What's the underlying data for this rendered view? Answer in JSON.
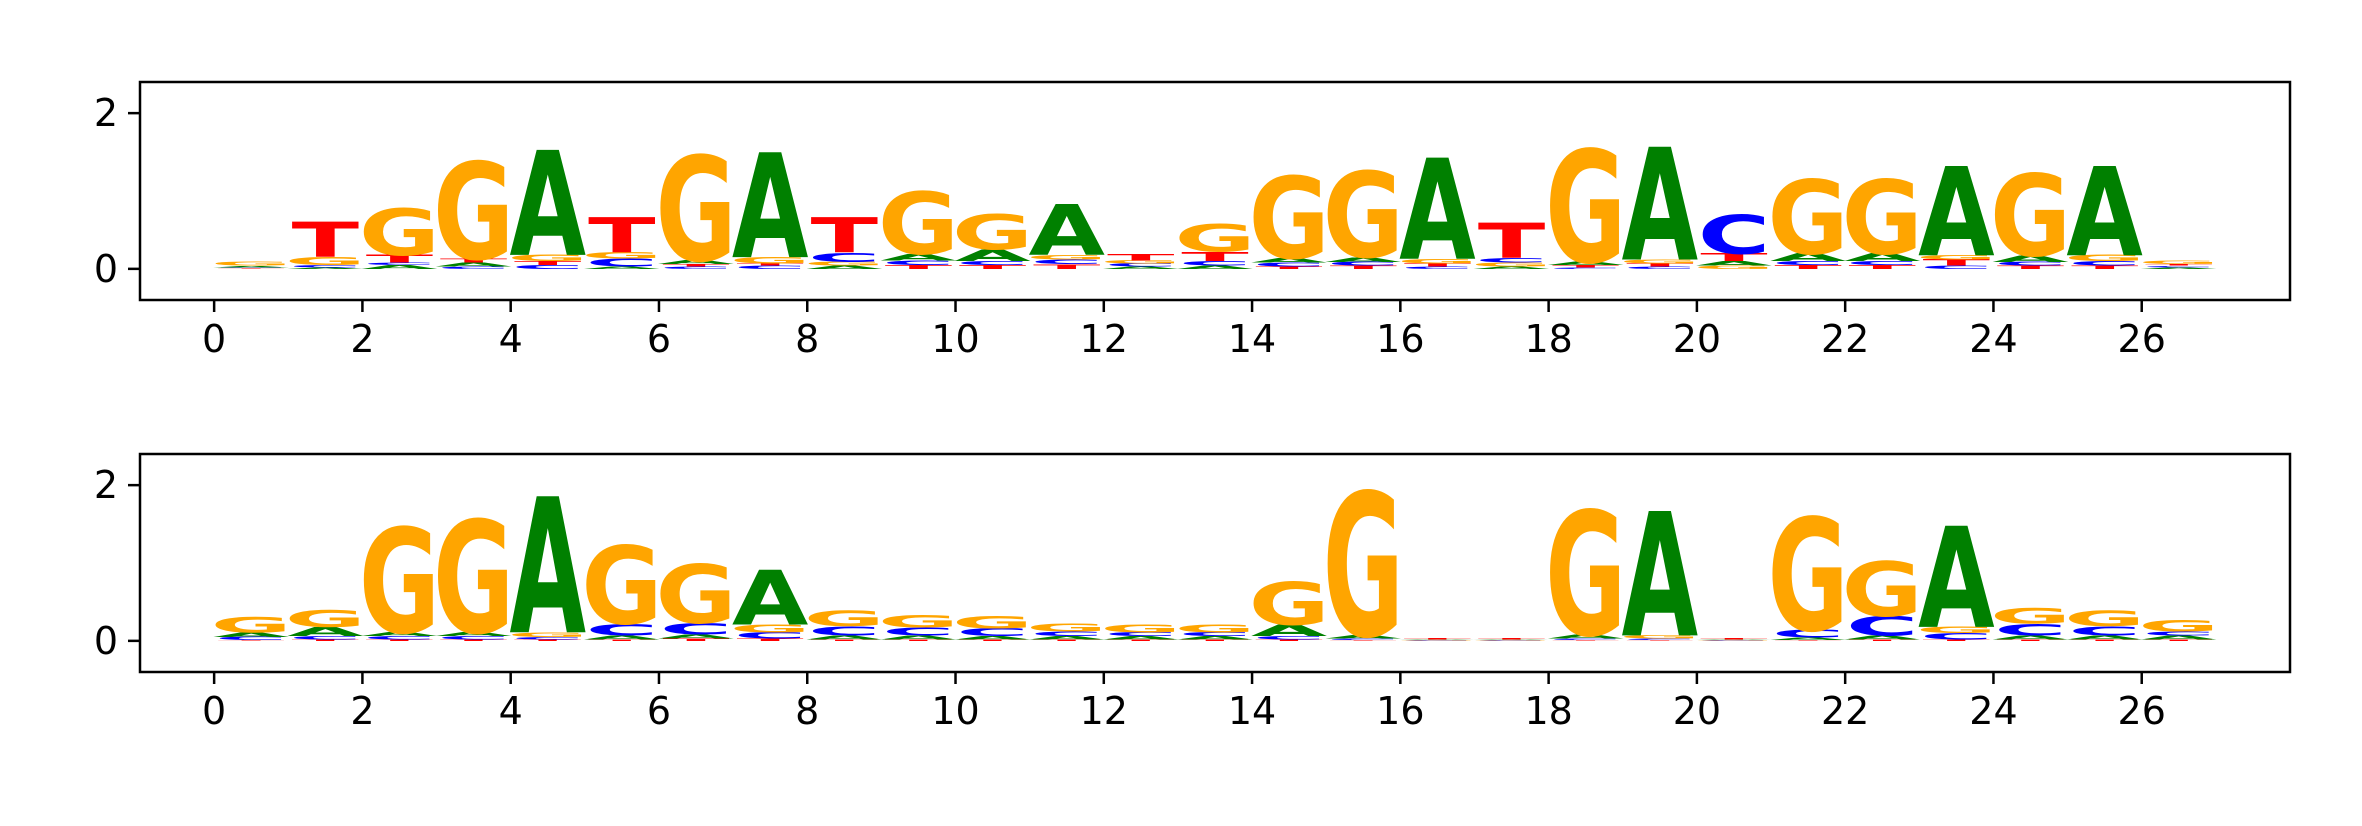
{
  "colors": {
    "A": "#008000",
    "C": "#0000ff",
    "G": "#ffa500",
    "T": "#ff0000"
  },
  "chart_data": [
    {
      "type": "sequence-logo",
      "title": "",
      "xlabel": "",
      "ylabel": "",
      "xlim": [
        -1,
        28
      ],
      "ylim": [
        -0.4,
        2.4
      ],
      "xticks": [
        "0",
        "2",
        "4",
        "6",
        "8",
        "10",
        "12",
        "14",
        "16",
        "18",
        "20",
        "22",
        "24",
        "26"
      ],
      "yticks": [
        "0",
        "2"
      ],
      "positions": [
        {
          "x": 0,
          "letters": [
            [
              "T",
              0.01
            ],
            [
              "C",
              0.01
            ],
            [
              "A",
              0.02
            ],
            [
              "G",
              0.05
            ]
          ]
        },
        {
          "x": 1,
          "letters": [
            [
              "A",
              0.02
            ],
            [
              "C",
              0.03
            ],
            [
              "G",
              0.1
            ],
            [
              "T",
              0.45
            ]
          ]
        },
        {
          "x": 2,
          "letters": [
            [
              "A",
              0.05
            ],
            [
              "C",
              0.03
            ],
            [
              "T",
              0.1
            ],
            [
              "G",
              0.6
            ]
          ]
        },
        {
          "x": 3,
          "letters": [
            [
              "C",
              0.03
            ],
            [
              "A",
              0.05
            ],
            [
              "T",
              0.05
            ],
            [
              "G",
              1.25
            ]
          ]
        },
        {
          "x": 4,
          "letters": [
            [
              "C",
              0.05
            ],
            [
              "T",
              0.05
            ],
            [
              "G",
              0.08
            ],
            [
              "A",
              1.35
            ]
          ]
        },
        {
          "x": 5,
          "letters": [
            [
              "A",
              0.03
            ],
            [
              "C",
              0.1
            ],
            [
              "G",
              0.08
            ],
            [
              "T",
              0.45
            ]
          ]
        },
        {
          "x": 6,
          "letters": [
            [
              "C",
              0.03
            ],
            [
              "T",
              0.03
            ],
            [
              "A",
              0.05
            ],
            [
              "G",
              1.35
            ]
          ]
        },
        {
          "x": 7,
          "letters": [
            [
              "C",
              0.04
            ],
            [
              "T",
              0.03
            ],
            [
              "G",
              0.08
            ],
            [
              "A",
              1.35
            ]
          ]
        },
        {
          "x": 8,
          "letters": [
            [
              "A",
              0.04
            ],
            [
              "G",
              0.05
            ],
            [
              "C",
              0.12
            ],
            [
              "T",
              0.45
            ]
          ]
        },
        {
          "x": 9,
          "letters": [
            [
              "T",
              0.05
            ],
            [
              "C",
              0.06
            ],
            [
              "A",
              0.08
            ],
            [
              "G",
              0.8
            ]
          ]
        },
        {
          "x": 10,
          "letters": [
            [
              "T",
              0.05
            ],
            [
              "C",
              0.05
            ],
            [
              "A",
              0.15
            ],
            [
              "G",
              0.45
            ]
          ]
        },
        {
          "x": 11,
          "letters": [
            [
              "T",
              0.06
            ],
            [
              "C",
              0.06
            ],
            [
              "G",
              0.06
            ],
            [
              "A",
              0.65
            ]
          ]
        },
        {
          "x": 12,
          "letters": [
            [
              "A",
              0.03
            ],
            [
              "C",
              0.04
            ],
            [
              "G",
              0.04
            ],
            [
              "T",
              0.08
            ]
          ]
        },
        {
          "x": 13,
          "letters": [
            [
              "A",
              0.04
            ],
            [
              "C",
              0.06
            ],
            [
              "T",
              0.12
            ],
            [
              "G",
              0.35
            ]
          ]
        },
        {
          "x": 14,
          "letters": [
            [
              "T",
              0.03
            ],
            [
              "C",
              0.05
            ],
            [
              "A",
              0.06
            ],
            [
              "G",
              1.05
            ]
          ]
        },
        {
          "x": 15,
          "letters": [
            [
              "T",
              0.04
            ],
            [
              "C",
              0.05
            ],
            [
              "A",
              0.06
            ],
            [
              "G",
              1.1
            ]
          ]
        },
        {
          "x": 16,
          "letters": [
            [
              "C",
              0.03
            ],
            [
              "T",
              0.04
            ],
            [
              "G",
              0.06
            ],
            [
              "A",
              1.3
            ]
          ]
        },
        {
          "x": 17,
          "letters": [
            [
              "A",
              0.03
            ],
            [
              "G",
              0.05
            ],
            [
              "C",
              0.06
            ],
            [
              "T",
              0.45
            ]
          ]
        },
        {
          "x": 18,
          "letters": [
            [
              "C",
              0.02
            ],
            [
              "T",
              0.03
            ],
            [
              "A",
              0.04
            ],
            [
              "G",
              1.45
            ]
          ]
        },
        {
          "x": 19,
          "letters": [
            [
              "C",
              0.03
            ],
            [
              "T",
              0.04
            ],
            [
              "G",
              0.05
            ],
            [
              "A",
              1.45
            ]
          ]
        },
        {
          "x": 20,
          "letters": [
            [
              "G",
              0.04
            ],
            [
              "A",
              0.06
            ],
            [
              "T",
              0.1
            ],
            [
              "C",
              0.5
            ]
          ]
        },
        {
          "x": 21,
          "letters": [
            [
              "T",
              0.05
            ],
            [
              "C",
              0.05
            ],
            [
              "A",
              0.1
            ],
            [
              "G",
              0.95
            ]
          ]
        },
        {
          "x": 22,
          "letters": [
            [
              "T",
              0.05
            ],
            [
              "C",
              0.05
            ],
            [
              "A",
              0.1
            ],
            [
              "G",
              0.95
            ]
          ]
        },
        {
          "x": 23,
          "letters": [
            [
              "C",
              0.04
            ],
            [
              "T",
              0.08
            ],
            [
              "G",
              0.06
            ],
            [
              "A",
              1.15
            ]
          ]
        },
        {
          "x": 24,
          "letters": [
            [
              "T",
              0.04
            ],
            [
              "C",
              0.05
            ],
            [
              "A",
              0.08
            ],
            [
              "G",
              1.05
            ]
          ]
        },
        {
          "x": 25,
          "letters": [
            [
              "T",
              0.04
            ],
            [
              "C",
              0.06
            ],
            [
              "G",
              0.08
            ],
            [
              "A",
              1.15
            ]
          ]
        },
        {
          "x": 26,
          "letters": [
            [
              "A",
              0.02
            ],
            [
              "C",
              0.02
            ],
            [
              "T",
              0.02
            ],
            [
              "G",
              0.04
            ]
          ]
        }
      ]
    },
    {
      "type": "sequence-logo",
      "title": "",
      "xlabel": "",
      "ylabel": "",
      "xlim": [
        -1,
        28
      ],
      "ylim": [
        -0.4,
        2.4
      ],
      "xticks": [
        "0",
        "2",
        "4",
        "6",
        "8",
        "10",
        "12",
        "14",
        "16",
        "18",
        "20",
        "22",
        "24",
        "26"
      ],
      "yticks": [
        "0",
        "2"
      ],
      "positions": [
        {
          "x": 0,
          "letters": [
            [
              "T",
              0.01
            ],
            [
              "C",
              0.04
            ],
            [
              "A",
              0.06
            ],
            [
              "G",
              0.2
            ]
          ]
        },
        {
          "x": 1,
          "letters": [
            [
              "T",
              0.02
            ],
            [
              "C",
              0.04
            ],
            [
              "A",
              0.12
            ],
            [
              "G",
              0.22
            ]
          ]
        },
        {
          "x": 2,
          "letters": [
            [
              "T",
              0.02
            ],
            [
              "C",
              0.04
            ],
            [
              "A",
              0.05
            ],
            [
              "G",
              1.35
            ]
          ]
        },
        {
          "x": 3,
          "letters": [
            [
              "T",
              0.02
            ],
            [
              "C",
              0.04
            ],
            [
              "A",
              0.05
            ],
            [
              "G",
              1.45
            ]
          ]
        },
        {
          "x": 4,
          "letters": [
            [
              "T",
              0.02
            ],
            [
              "C",
              0.03
            ],
            [
              "G",
              0.06
            ],
            [
              "A",
              1.75
            ]
          ]
        },
        {
          "x": 5,
          "letters": [
            [
              "T",
              0.02
            ],
            [
              "A",
              0.05
            ],
            [
              "C",
              0.15
            ],
            [
              "G",
              1.0
            ]
          ]
        },
        {
          "x": 6,
          "letters": [
            [
              "T",
              0.03
            ],
            [
              "A",
              0.05
            ],
            [
              "C",
              0.15
            ],
            [
              "G",
              0.75
            ]
          ]
        },
        {
          "x": 7,
          "letters": [
            [
              "T",
              0.03
            ],
            [
              "C",
              0.08
            ],
            [
              "G",
              0.1
            ],
            [
              "A",
              0.7
            ]
          ]
        },
        {
          "x": 8,
          "letters": [
            [
              "T",
              0.02
            ],
            [
              "A",
              0.05
            ],
            [
              "C",
              0.12
            ],
            [
              "G",
              0.2
            ]
          ]
        },
        {
          "x": 9,
          "letters": [
            [
              "T",
              0.02
            ],
            [
              "A",
              0.05
            ],
            [
              "C",
              0.1
            ],
            [
              "G",
              0.16
            ]
          ]
        },
        {
          "x": 10,
          "letters": [
            [
              "T",
              0.02
            ],
            [
              "A",
              0.04
            ],
            [
              "C",
              0.1
            ],
            [
              "G",
              0.16
            ]
          ]
        },
        {
          "x": 11,
          "letters": [
            [
              "T",
              0.02
            ],
            [
              "A",
              0.04
            ],
            [
              "C",
              0.06
            ],
            [
              "G",
              0.1
            ]
          ]
        },
        {
          "x": 12,
          "letters": [
            [
              "T",
              0.02
            ],
            [
              "A",
              0.04
            ],
            [
              "C",
              0.05
            ],
            [
              "G",
              0.1
            ]
          ]
        },
        {
          "x": 13,
          "letters": [
            [
              "T",
              0.02
            ],
            [
              "A",
              0.04
            ],
            [
              "C",
              0.05
            ],
            [
              "G",
              0.1
            ]
          ]
        },
        {
          "x": 14,
          "letters": [
            [
              "T",
              0.02
            ],
            [
              "C",
              0.04
            ],
            [
              "A",
              0.15
            ],
            [
              "G",
              0.55
            ]
          ]
        },
        {
          "x": 15,
          "letters": [
            [
              "T",
              0.01
            ],
            [
              "C",
              0.02
            ],
            [
              "A",
              0.04
            ],
            [
              "G",
              1.85
            ]
          ]
        },
        {
          "x": 16,
          "letters": [
            [
              "C",
              0.005
            ],
            [
              "G",
              0.005
            ],
            [
              "A",
              0.005
            ],
            [
              "T",
              0.02
            ]
          ]
        },
        {
          "x": 17,
          "letters": [
            [
              "C",
              0.005
            ],
            [
              "G",
              0.005
            ],
            [
              "A",
              0.005
            ],
            [
              "T",
              0.02
            ]
          ]
        },
        {
          "x": 18,
          "letters": [
            [
              "T",
              0.01
            ],
            [
              "C",
              0.02
            ],
            [
              "A",
              0.05
            ],
            [
              "G",
              1.6
            ]
          ]
        },
        {
          "x": 19,
          "letters": [
            [
              "T",
              0.01
            ],
            [
              "C",
              0.02
            ],
            [
              "G",
              0.04
            ],
            [
              "A",
              1.6
            ]
          ]
        },
        {
          "x": 20,
          "letters": [
            [
              "C",
              0.005
            ],
            [
              "G",
              0.005
            ],
            [
              "A",
              0.005
            ],
            [
              "T",
              0.02
            ]
          ]
        },
        {
          "x": 21,
          "letters": [
            [
              "T",
              0.01
            ],
            [
              "A",
              0.03
            ],
            [
              "C",
              0.1
            ],
            [
              "G",
              1.45
            ]
          ]
        },
        {
          "x": 22,
          "letters": [
            [
              "T",
              0.02
            ],
            [
              "A",
              0.05
            ],
            [
              "C",
              0.25
            ],
            [
              "G",
              0.7
            ]
          ]
        },
        {
          "x": 23,
          "letters": [
            [
              "T",
              0.02
            ],
            [
              "C",
              0.08
            ],
            [
              "G",
              0.08
            ],
            [
              "A",
              1.3
            ]
          ]
        },
        {
          "x": 24,
          "letters": [
            [
              "T",
              0.02
            ],
            [
              "A",
              0.05
            ],
            [
              "C",
              0.15
            ],
            [
              "G",
              0.2
            ]
          ]
        },
        {
          "x": 25,
          "letters": [
            [
              "T",
              0.02
            ],
            [
              "A",
              0.05
            ],
            [
              "C",
              0.12
            ],
            [
              "G",
              0.2
            ]
          ]
        },
        {
          "x": 26,
          "letters": [
            [
              "T",
              0.02
            ],
            [
              "A",
              0.05
            ],
            [
              "C",
              0.05
            ],
            [
              "G",
              0.15
            ]
          ]
        }
      ]
    }
  ]
}
